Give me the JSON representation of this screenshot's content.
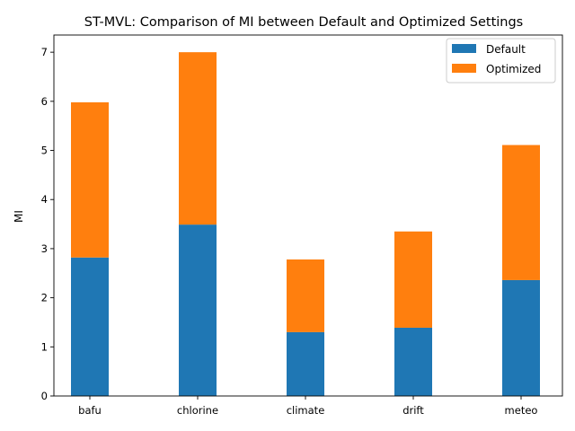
{
  "chart_data": {
    "type": "bar",
    "stacked": true,
    "title": "ST-MVL: Comparison of MI between Default and Optimized Settings",
    "xlabel": "",
    "ylabel": "MI",
    "categories": [
      "bafu",
      "chlorine",
      "climate",
      "drift",
      "meteo"
    ],
    "series": [
      {
        "name": "Default",
        "color": "#1f77b4",
        "values": [
          2.82,
          3.49,
          1.3,
          1.39,
          2.36
        ]
      },
      {
        "name": "Optimized",
        "color": "#ff7f0e",
        "values": [
          3.16,
          3.51,
          1.48,
          1.96,
          2.75
        ]
      }
    ],
    "ylim": [
      0,
      7.35
    ],
    "yticks": [
      "0",
      "1",
      "2",
      "3",
      "4",
      "5",
      "6",
      "7"
    ],
    "grid": false,
    "legend_position": "top-right"
  }
}
